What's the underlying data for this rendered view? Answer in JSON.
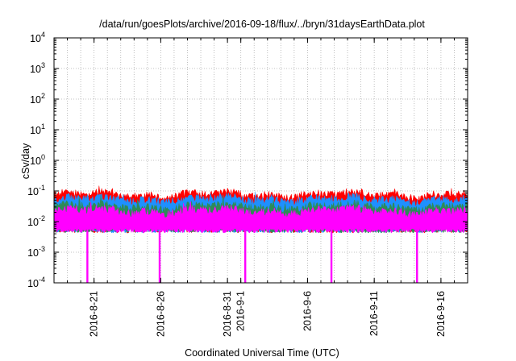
{
  "chart_data": {
    "type": "area",
    "title": "/data/run/goesPlots/archive/2016-09-18/flux/../bryn/31daysEarthData.plot",
    "xlabel": "Coordinated Universal Time (UTC)",
    "ylabel": "cSv/day",
    "yscale": "log",
    "ylim": [
      0.0001,
      10000
    ],
    "xlim": [
      "2016-08-18",
      "2016-09-18"
    ],
    "grid": true,
    "y_ticks": [
      {
        "value": 0.0001,
        "base": "10",
        "exp": "-4"
      },
      {
        "value": 0.001,
        "base": "10",
        "exp": "-3"
      },
      {
        "value": 0.01,
        "base": "10",
        "exp": "-2"
      },
      {
        "value": 0.1,
        "base": "10",
        "exp": "-1"
      },
      {
        "value": 1,
        "base": "10",
        "exp": "0"
      },
      {
        "value": 10,
        "base": "10",
        "exp": "1"
      },
      {
        "value": 100,
        "base": "10",
        "exp": "2"
      },
      {
        "value": 1000,
        "base": "10",
        "exp": "3"
      },
      {
        "value": 10000,
        "base": "10",
        "exp": "4"
      }
    ],
    "x_ticks": [
      {
        "date": "2016-08-21",
        "label": "2016-8-21"
      },
      {
        "date": "2016-08-26",
        "label": "2016-8-26"
      },
      {
        "date": "2016-08-31",
        "label": "2016-8-31"
      },
      {
        "date": "2016-09-01",
        "label": "2016-9-1"
      },
      {
        "date": "2016-09-06",
        "label": "2016-9-6"
      },
      {
        "date": "2016-09-11",
        "label": "2016-9-11"
      },
      {
        "date": "2016-09-16",
        "label": "2016-9-16"
      }
    ],
    "series": [
      {
        "color": "#ff0000",
        "typical_peak": 0.085,
        "typical_base": 0.005
      },
      {
        "color": "#1e90ff",
        "typical_peak": 0.06,
        "typical_base": 0.005
      },
      {
        "color": "#2e8b57",
        "typical_peak": 0.035,
        "typical_base": 0.005
      },
      {
        "color": "#ff00ff",
        "typical_peak": 0.025,
        "typical_base": 0.005
      }
    ],
    "dropouts": {
      "color": "#ff00ff",
      "dates": [
        "2016-08-20T12:00",
        "2016-08-25T22:00",
        "2016-09-01T08:00",
        "2016-09-07T19:00",
        "2016-09-14T05:00"
      ],
      "value": 0.0001
    }
  }
}
